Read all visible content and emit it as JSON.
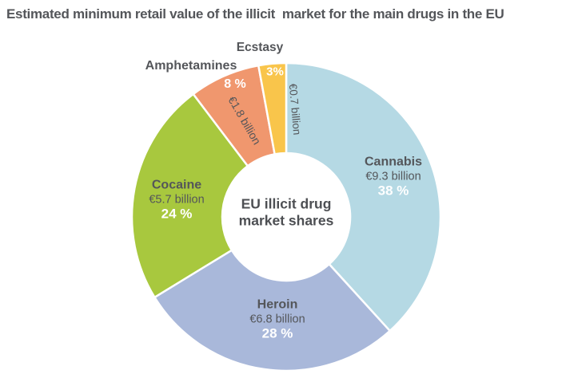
{
  "title": "Estimated minimum retail value of the illicit  market for the main drugs in the EU",
  "center_label": {
    "line1": "EU illicit drug",
    "line2": "market shares"
  },
  "chart_data": {
    "type": "pie",
    "subtype": "donut",
    "title": "EU illicit drug market shares",
    "unit": "EUR billion",
    "direction": "clockwise",
    "start_angle_deg": 0,
    "legend_position": "none",
    "segments": [
      {
        "name": "Cannabis",
        "value": 9.3,
        "value_label": "€9.3 billion",
        "percent": 38,
        "percent_label": "38 %",
        "color": "#b5d9e4"
      },
      {
        "name": "Heroin",
        "value": 6.8,
        "value_label": "€6.8 billion",
        "percent": 28,
        "percent_label": "28 %",
        "color": "#a9b8da"
      },
      {
        "name": "Cocaine",
        "value": 5.7,
        "value_label": "€5.7 billion",
        "percent": 24,
        "percent_label": "24 %",
        "color": "#a8c83e"
      },
      {
        "name": "Amphetamines",
        "value": 1.8,
        "value_label": "€1.8 billion",
        "percent": 8,
        "percent_label": "8 %",
        "color": "#f0976e"
      },
      {
        "name": "Ecstasy",
        "value": 0.7,
        "value_label": "€0.7 billion",
        "percent": 3,
        "percent_label": "3%",
        "color": "#f9c54b"
      }
    ]
  },
  "colors": {
    "text": "#54565a",
    "percent_text": "#ffffff",
    "background": "#ffffff",
    "separator": "#ffffff"
  }
}
